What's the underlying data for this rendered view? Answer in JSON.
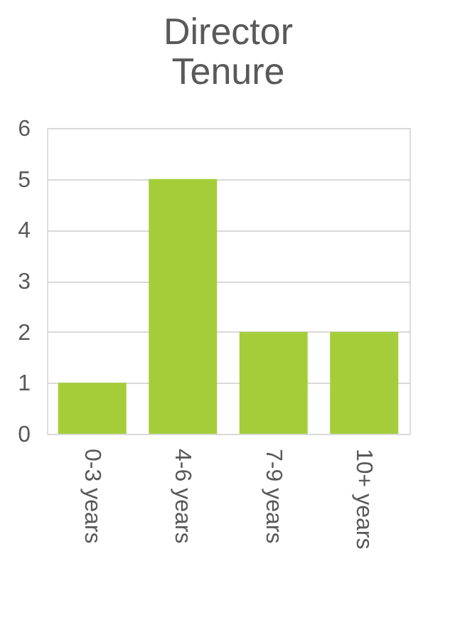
{
  "chart_data": {
    "type": "bar",
    "title": "Director Tenure",
    "categories": [
      "0-3 years",
      "4-6 years",
      "7-9 years",
      "10+ years"
    ],
    "values": [
      1,
      5,
      2,
      2
    ],
    "color": "#a5cd39",
    "ylim": [
      0,
      6
    ],
    "yticks": [
      0,
      1,
      2,
      3,
      4,
      5,
      6
    ],
    "grid": "y"
  }
}
